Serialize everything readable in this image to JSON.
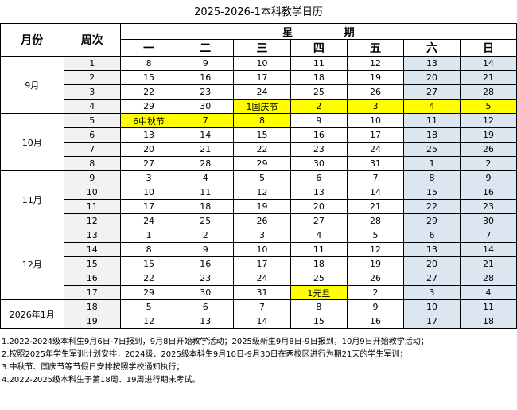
{
  "title": "2025-2026-1本科教学日历",
  "headers": {
    "month": "月份",
    "week": "周次",
    "xingqi": "星  期"
  },
  "days": [
    "一",
    "二",
    "三",
    "四",
    "五",
    "六",
    "日"
  ],
  "months": [
    {
      "label": "9月",
      "weeks": 4
    },
    {
      "label": "10月",
      "weeks": 4
    },
    {
      "label": "11月",
      "weeks": 4
    },
    {
      "label": "12月",
      "weeks": 5
    },
    {
      "label": "2026年1月",
      "weeks": 2
    }
  ],
  "rows": [
    {
      "week": "1",
      "days": [
        "8",
        "9",
        "10",
        "11",
        "12",
        "13",
        "14"
      ],
      "hol": []
    },
    {
      "week": "2",
      "days": [
        "15",
        "16",
        "17",
        "18",
        "19",
        "20",
        "21"
      ],
      "hol": []
    },
    {
      "week": "3",
      "days": [
        "22",
        "23",
        "24",
        "25",
        "26",
        "27",
        "28"
      ],
      "hol": []
    },
    {
      "week": "4",
      "days": [
        "29",
        "30",
        "1国庆节",
        "2",
        "3",
        "4",
        "5"
      ],
      "hol": [
        2,
        3,
        4,
        5,
        6
      ]
    },
    {
      "week": "5",
      "days": [
        "6中秋节",
        "7",
        "8",
        "9",
        "10",
        "11",
        "12"
      ],
      "hol": [
        0,
        1,
        2
      ]
    },
    {
      "week": "6",
      "days": [
        "13",
        "14",
        "15",
        "16",
        "17",
        "18",
        "19"
      ],
      "hol": []
    },
    {
      "week": "7",
      "days": [
        "20",
        "21",
        "22",
        "23",
        "24",
        "25",
        "26"
      ],
      "hol": []
    },
    {
      "week": "8",
      "days": [
        "27",
        "28",
        "29",
        "30",
        "31",
        "1",
        "2"
      ],
      "hol": []
    },
    {
      "week": "9",
      "days": [
        "3",
        "4",
        "5",
        "6",
        "7",
        "8",
        "9"
      ],
      "hol": []
    },
    {
      "week": "10",
      "days": [
        "10",
        "11",
        "12",
        "13",
        "14",
        "15",
        "16"
      ],
      "hol": []
    },
    {
      "week": "11",
      "days": [
        "17",
        "18",
        "19",
        "20",
        "21",
        "22",
        "23"
      ],
      "hol": []
    },
    {
      "week": "12",
      "days": [
        "24",
        "25",
        "26",
        "27",
        "28",
        "29",
        "30"
      ],
      "hol": []
    },
    {
      "week": "13",
      "days": [
        "1",
        "2",
        "3",
        "4",
        "5",
        "6",
        "7"
      ],
      "hol": []
    },
    {
      "week": "14",
      "days": [
        "8",
        "9",
        "10",
        "11",
        "12",
        "13",
        "14"
      ],
      "hol": []
    },
    {
      "week": "15",
      "days": [
        "15",
        "16",
        "17",
        "18",
        "19",
        "20",
        "21"
      ],
      "hol": []
    },
    {
      "week": "16",
      "days": [
        "22",
        "23",
        "24",
        "25",
        "26",
        "27",
        "28"
      ],
      "hol": []
    },
    {
      "week": "17",
      "days": [
        "29",
        "30",
        "31",
        "1元旦",
        "2",
        "3",
        "4"
      ],
      "hol": [
        3
      ]
    },
    {
      "week": "18",
      "days": [
        "5",
        "6",
        "7",
        "8",
        "9",
        "10",
        "11"
      ],
      "hol": []
    },
    {
      "week": "19",
      "days": [
        "12",
        "13",
        "14",
        "15",
        "16",
        "17",
        "18"
      ],
      "hol": []
    }
  ],
  "notes": [
    "1.2022-2024级本科生9月6日-7日报到，9月8日开始教学活动；2025级新生9月8日-9日报到，10月9日开始教学活动；",
    "2.按照2025年学生军训计划安排，2024级、2025级本科生9月10日-9月30日在两校区进行为期21天的学生军训；",
    "3.中秋节、国庆节等节假日安排按照学校通知执行；",
    "4.2022-2025级本科生于第18周、19周进行期末考试。"
  ],
  "colors": {
    "holiday": "#ffff00",
    "weekend": "#dce6f1",
    "week_col": "#f2f2f2"
  }
}
